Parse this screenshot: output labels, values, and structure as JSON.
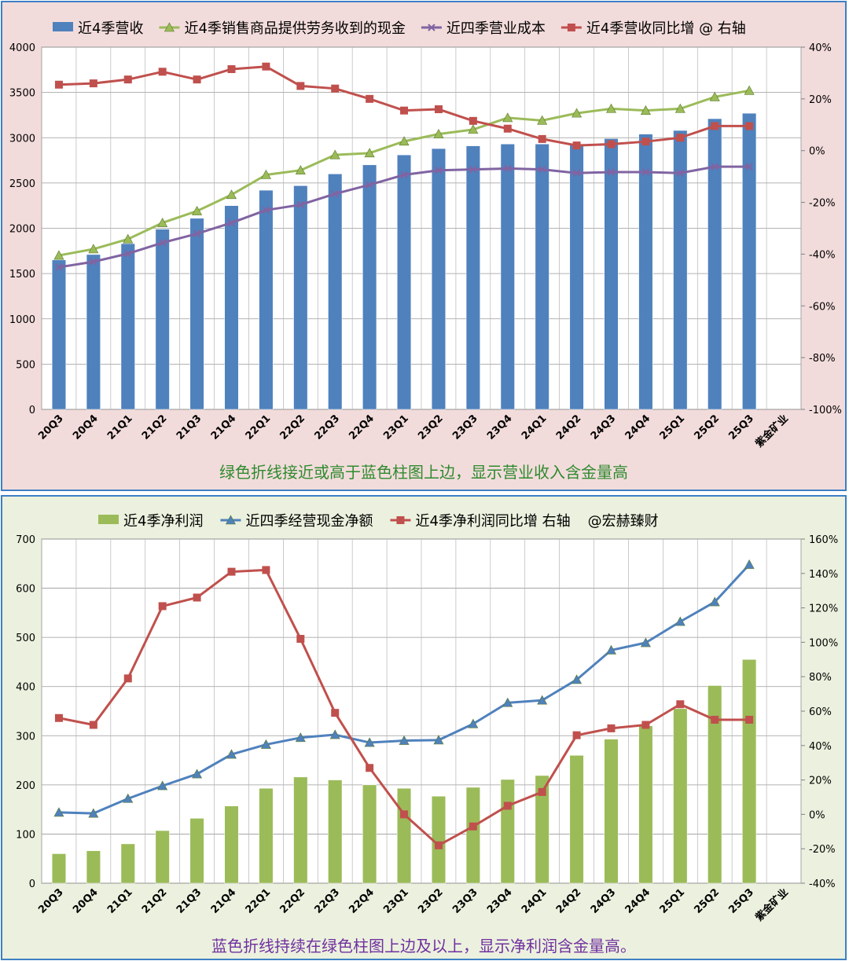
{
  "chart_data": [
    {
      "type": "bar",
      "categories": [
        "20Q3",
        "20Q4",
        "21Q1",
        "21Q2",
        "21Q3",
        "21Q4",
        "22Q1",
        "22Q2",
        "22Q3",
        "22Q4",
        "23Q1",
        "23Q2",
        "23Q3",
        "23Q4",
        "24Q1",
        "24Q2",
        "24Q3",
        "24Q4",
        "25Q1",
        "25Q2",
        "25Q3",
        "紫金矿业"
      ],
      "series": [
        {
          "name": "近4季营收",
          "kind": "bar",
          "axis": "left",
          "color": "#4f81bd",
          "values": [
            1650,
            1710,
            1830,
            1990,
            2110,
            2250,
            2420,
            2470,
            2600,
            2700,
            2810,
            2880,
            2910,
            2930,
            2930,
            2930,
            2990,
            3040,
            3080,
            3210,
            3270,
            null
          ]
        },
        {
          "name": "近4季销售商品提供劳务收到的现金",
          "kind": "line",
          "marker": "triangle",
          "axis": "left",
          "color": "#9bbb59",
          "values": [
            1700,
            1770,
            1880,
            2060,
            2190,
            2370,
            2590,
            2640,
            2810,
            2830,
            2960,
            3040,
            3090,
            3220,
            3190,
            3270,
            3320,
            3300,
            3320,
            3450,
            3520,
            null
          ]
        },
        {
          "name": "近四季营业成本",
          "kind": "line",
          "marker": "x",
          "axis": "left",
          "color": "#8064a2",
          "values": [
            1570,
            1630,
            1720,
            1840,
            1940,
            2060,
            2200,
            2260,
            2380,
            2480,
            2590,
            2640,
            2650,
            2660,
            2650,
            2610,
            2620,
            2620,
            2610,
            2680,
            2680,
            null
          ]
        },
        {
          "name": "近4季营收同比增 @ 右轴",
          "kind": "line",
          "marker": "square",
          "axis": "right",
          "color": "#c0504d",
          "values": [
            25.5,
            26,
            27.5,
            30.5,
            27.5,
            31.5,
            32.5,
            25,
            24,
            20,
            15.5,
            16,
            11.5,
            8.5,
            4.5,
            2,
            2.5,
            3.5,
            5,
            9.5,
            9.5,
            null
          ]
        }
      ],
      "ylim_left": [
        0,
        4000
      ],
      "yticks_left": [
        0,
        500,
        1000,
        1500,
        2000,
        2500,
        3000,
        3500,
        4000
      ],
      "ylim_right": [
        -100,
        40
      ],
      "yticks_right": [
        "-100%",
        "-80%",
        "-60%",
        "-40%",
        "-20%",
        "0%",
        "20%",
        "40%"
      ],
      "legend_position": "top",
      "grid": true,
      "annotation": "绿色折线接近或高于蓝色柱图上边，显示营业收入含金量高",
      "background": "#f2dcdb"
    },
    {
      "type": "bar",
      "categories": [
        "20Q3",
        "20Q4",
        "21Q1",
        "21Q2",
        "21Q3",
        "21Q4",
        "22Q1",
        "22Q2",
        "22Q3",
        "22Q4",
        "23Q1",
        "23Q2",
        "23Q3",
        "23Q4",
        "24Q1",
        "24Q2",
        "24Q3",
        "24Q4",
        "25Q1",
        "25Q2",
        "25Q3",
        "紫金矿业"
      ],
      "series": [
        {
          "name": "近4季净利润",
          "kind": "bar",
          "axis": "left",
          "color": "#9bbb59",
          "values": [
            60,
            66,
            80,
            107,
            132,
            157,
            193,
            216,
            210,
            200,
            193,
            177,
            195,
            211,
            219,
            260,
            293,
            320,
            355,
            402,
            455,
            null
          ]
        },
        {
          "name": "近四季经营现金净额",
          "kind": "line",
          "marker": "triangle",
          "axis": "left",
          "color": "#4f81bd",
          "values": [
            144,
            142,
            172,
            198,
            222,
            262,
            282,
            296,
            302,
            286,
            290,
            291,
            324,
            367,
            372,
            414,
            474,
            489,
            532,
            572,
            648,
            null
          ]
        },
        {
          "name": "近4季净利润同比增 右轴",
          "kind": "line",
          "marker": "square",
          "axis": "right",
          "color": "#c0504d",
          "values": [
            56,
            52,
            79,
            121,
            126,
            141,
            142,
            102,
            59,
            27,
            0,
            -18,
            -7,
            5,
            13,
            46,
            50,
            52,
            64,
            55,
            55,
            null
          ]
        }
      ],
      "ylim_left": [
        0,
        700
      ],
      "yticks_left": [
        0,
        100,
        200,
        300,
        400,
        500,
        600,
        700
      ],
      "ylim_right": [
        -40,
        160
      ],
      "yticks_right": [
        "-40%",
        "-20%",
        "0%",
        "20%",
        "40%",
        "60%",
        "80%",
        "100%",
        "120%",
        "140%",
        "160%"
      ],
      "legend_extra": "@宏赫臻财",
      "legend_position": "top",
      "grid": true,
      "annotation": "蓝色折线持续在绿色柱图上边及以上，显示净利润含金量高。",
      "background": "#ebf1de"
    }
  ]
}
